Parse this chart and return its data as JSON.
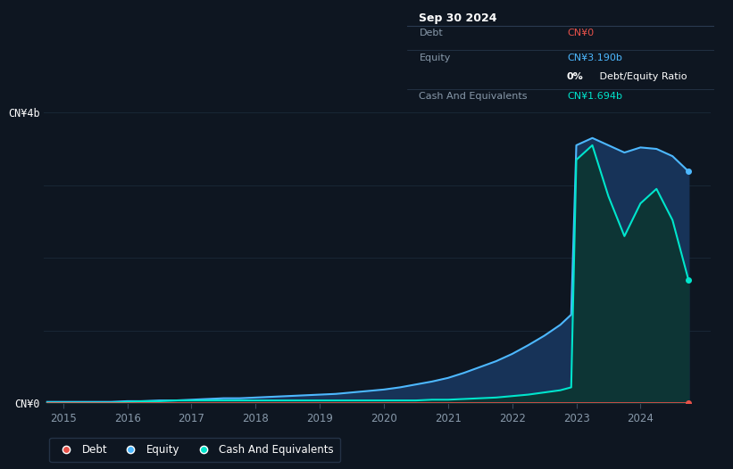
{
  "bg_color": "#0e1621",
  "plot_bg_color": "#0e1621",
  "grid_color": "#1c2b3a",
  "tooltip": {
    "date": "Sep 30 2024",
    "debt_label": "Debt",
    "debt_value": "CN¥0",
    "equity_label": "Equity",
    "equity_value": "CN¥3.190b",
    "ratio_text": "0% Debt/Equity Ratio",
    "cash_label": "Cash And Equivalents",
    "cash_value": "CN¥1.694b"
  },
  "ylabel_top": "CN¥4b",
  "ylabel_bottom": "CN¥0",
  "ylim": [
    0,
    4.0
  ],
  "debt_color": "#e8524a",
  "equity_color": "#4db8ff",
  "cash_color": "#00e5cc",
  "equity_fill_color": "#173358",
  "cash_fill_color": "#0d3535",
  "years": [
    2014.75,
    2015.0,
    2015.25,
    2015.5,
    2015.75,
    2016.0,
    2016.25,
    2016.5,
    2016.75,
    2017.0,
    2017.25,
    2017.5,
    2017.75,
    2018.0,
    2018.25,
    2018.5,
    2018.75,
    2019.0,
    2019.25,
    2019.5,
    2019.75,
    2020.0,
    2020.25,
    2020.5,
    2020.75,
    2021.0,
    2021.25,
    2021.5,
    2021.75,
    2022.0,
    2022.25,
    2022.5,
    2022.75,
    2022.92,
    2023.0,
    2023.25,
    2023.5,
    2023.75,
    2024.0,
    2024.25,
    2024.5,
    2024.75
  ],
  "debt": [
    0.0,
    0.0,
    0.0,
    0.0,
    0.0,
    0.0,
    0.0,
    0.0,
    0.0,
    0.0,
    0.0,
    0.0,
    0.0,
    0.0,
    0.0,
    0.0,
    0.0,
    0.0,
    0.0,
    0.0,
    0.0,
    0.0,
    0.0,
    0.0,
    0.0,
    0.0,
    0.0,
    0.0,
    0.0,
    0.0,
    0.0,
    0.0,
    0.0,
    0.0,
    0.0,
    0.0,
    0.0,
    0.0,
    0.0,
    0.0,
    0.0,
    0.0
  ],
  "equity": [
    0.02,
    0.02,
    0.02,
    0.02,
    0.02,
    0.03,
    0.03,
    0.04,
    0.04,
    0.05,
    0.06,
    0.07,
    0.07,
    0.08,
    0.09,
    0.1,
    0.11,
    0.12,
    0.13,
    0.15,
    0.17,
    0.19,
    0.22,
    0.26,
    0.3,
    0.35,
    0.42,
    0.5,
    0.58,
    0.68,
    0.8,
    0.93,
    1.08,
    1.22,
    3.55,
    3.65,
    3.55,
    3.45,
    3.52,
    3.5,
    3.4,
    3.19
  ],
  "cash": [
    0.01,
    0.01,
    0.01,
    0.01,
    0.01,
    0.02,
    0.03,
    0.03,
    0.04,
    0.04,
    0.04,
    0.04,
    0.04,
    0.04,
    0.04,
    0.04,
    0.04,
    0.04,
    0.04,
    0.04,
    0.04,
    0.04,
    0.04,
    0.04,
    0.05,
    0.05,
    0.06,
    0.07,
    0.08,
    0.1,
    0.12,
    0.15,
    0.18,
    0.22,
    3.35,
    3.55,
    2.85,
    2.3,
    2.75,
    2.95,
    2.52,
    1.694
  ],
  "xticks": [
    2015,
    2016,
    2017,
    2018,
    2019,
    2020,
    2021,
    2022,
    2023,
    2024
  ],
  "xlim_left": 2014.7,
  "xlim_right": 2025.1,
  "tooltip_bg": "#080e18",
  "tooltip_border": "#2a3a50"
}
